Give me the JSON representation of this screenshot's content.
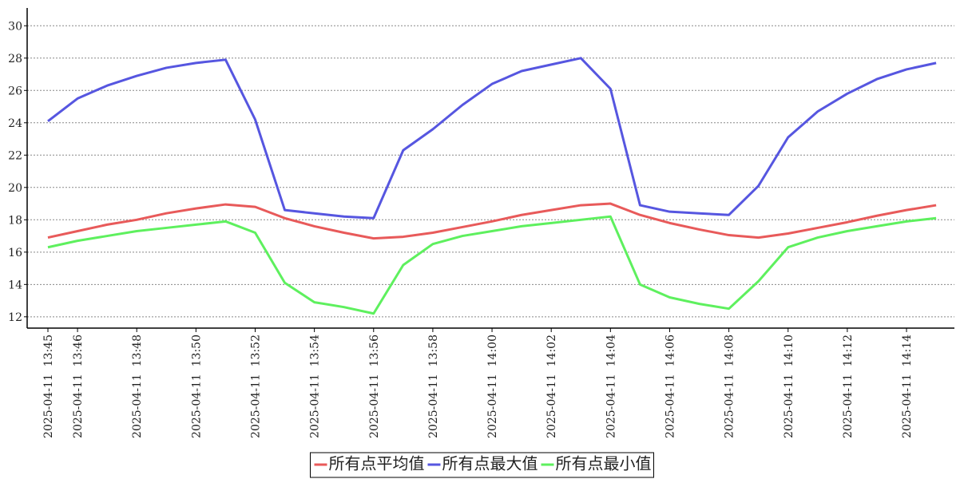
{
  "chart_data": {
    "type": "line",
    "categories": [
      "2025-04-11  13:45",
      "2025-04-11  13:46",
      null,
      "2025-04-11  13:48",
      null,
      "2025-04-11  13:50",
      null,
      "2025-04-11  13:52",
      null,
      "2025-04-11  13:54",
      null,
      "2025-04-11  13:56",
      null,
      "2025-04-11  13:58",
      null,
      "2025-04-11  14:00",
      null,
      "2025-04-11  14:02",
      null,
      "2025-04-11  14:04",
      null,
      "2025-04-11  14:06",
      null,
      "2025-04-11  14:08",
      null,
      "2025-04-11  14:10",
      null,
      "2025-04-11  14:12",
      null,
      "2025-04-11  14:14",
      null
    ],
    "series": [
      {
        "name": "所有点平均值",
        "color": "#e85a5a",
        "values": [
          16.9,
          17.3,
          17.7,
          18.0,
          18.4,
          18.7,
          18.95,
          18.8,
          18.1,
          17.6,
          17.2,
          16.85,
          16.95,
          17.2,
          17.55,
          17.9,
          18.3,
          18.6,
          18.9,
          19.0,
          18.3,
          17.8,
          17.4,
          17.05,
          16.9,
          17.15,
          17.5,
          17.85,
          18.25,
          18.6,
          18.9
        ]
      },
      {
        "name": "所有点最大值",
        "color": "#5656e0",
        "values": [
          24.1,
          25.5,
          26.3,
          26.9,
          27.4,
          27.7,
          27.9,
          24.2,
          18.6,
          18.4,
          18.2,
          18.1,
          22.3,
          23.6,
          25.1,
          26.4,
          27.2,
          27.6,
          28.0,
          26.1,
          18.9,
          18.5,
          18.4,
          18.3,
          20.1,
          23.1,
          24.7,
          25.8,
          26.7,
          27.3,
          27.7
        ]
      },
      {
        "name": "所有点最小值",
        "color": "#5ef05e",
        "values": [
          16.3,
          16.7,
          17.0,
          17.3,
          17.5,
          17.7,
          17.9,
          17.2,
          14.1,
          12.9,
          12.6,
          12.2,
          15.2,
          16.5,
          17.0,
          17.3,
          17.6,
          17.8,
          18.0,
          18.2,
          14.0,
          13.2,
          12.8,
          12.5,
          14.2,
          16.3,
          16.9,
          17.3,
          17.6,
          17.9,
          18.1
        ]
      }
    ],
    "ylim": [
      11.3,
      31.1
    ],
    "yticks": [
      12,
      14,
      16,
      18,
      20,
      22,
      24,
      26,
      28,
      30
    ],
    "grid": true,
    "legend": "bottom"
  }
}
